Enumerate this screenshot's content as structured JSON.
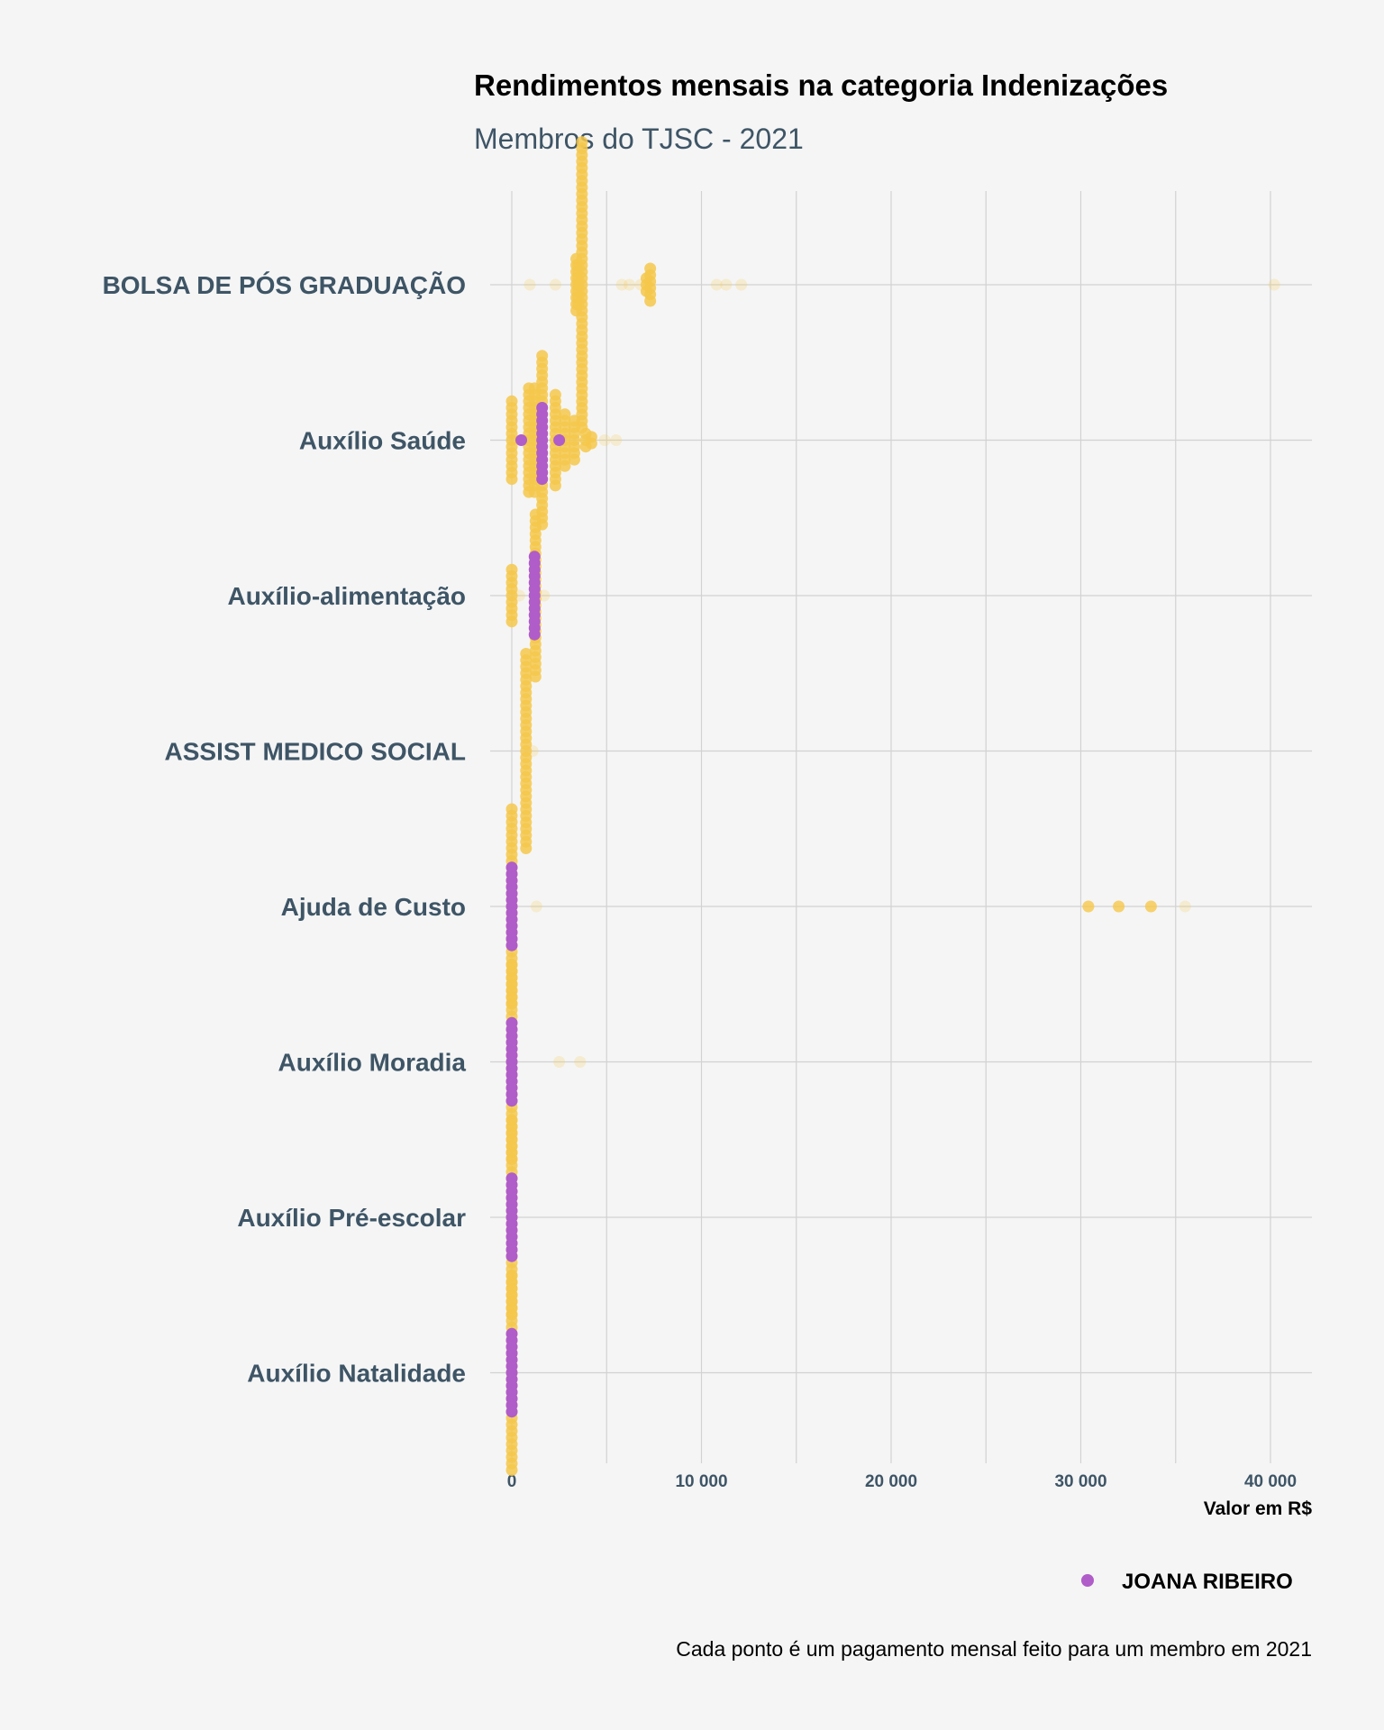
{
  "chart_data": {
    "type": "scatter",
    "title": "Rendimentos mensais na categoria Indenizações",
    "subtitle": "Membros do TJSC - 2021",
    "xlabel": "Valor em R$",
    "ylabel": "",
    "xlim": [
      -1000,
      42500
    ],
    "x_ticks": [
      0,
      10000,
      20000,
      30000,
      40000
    ],
    "x_tick_labels": [
      "0",
      "10 000",
      "20 000",
      "30 000",
      "40 000"
    ],
    "grid": true,
    "legend_position": "bottom-right",
    "caption": "Cada ponto é um pagamento mensal feito para um membro em 2021",
    "categories": [
      "BOLSA DE PÓS GRADUAÇÃO",
      "Auxílio Saúde",
      "Auxílio-alimentação",
      "ASSIST MEDICO SOCIAL",
      "Ajuda de Custo",
      "Auxílio Moradia",
      "Auxílio Pré-escolar",
      "Auxílio Natalidade"
    ],
    "series": [
      {
        "name": "",
        "color": "#f5c84c",
        "groups": [
          {
            "category": "BOLSA DE PÓS GRADUAÇÃO",
            "clusters": [
              {
                "x": 3700,
                "count": 45
              },
              {
                "x": 3400,
                "count": 9
              },
              {
                "x": 3500,
                "count": 7
              },
              {
                "x": 7300,
                "count": 6
              },
              {
                "x": 7100,
                "count": 3
              }
            ],
            "outliers": [
              950,
              2300,
              5800,
              6200,
              6800,
              10800,
              11300,
              12100,
              40200
            ]
          },
          {
            "category": "Auxílio Saúde",
            "clusters": [
              {
                "x": 1600,
                "count": 27
              },
              {
                "x": 1200,
                "count": 17
              },
              {
                "x": 900,
                "count": 17
              },
              {
                "x": 2300,
                "count": 15
              },
              {
                "x": 0,
                "count": 13
              },
              {
                "x": 2800,
                "count": 9
              },
              {
                "x": 3300,
                "count": 7
              },
              {
                "x": 3900,
                "count": 3
              },
              {
                "x": 4200,
                "count": 2
              }
            ],
            "outliers": [
              4900,
              5500
            ]
          },
          {
            "category": "Auxílio-alimentação",
            "clusters": [
              {
                "x": 1250,
                "count": 26
              },
              {
                "x": 0,
                "count": 9
              }
            ],
            "outliers": [
              1700,
              400
            ]
          },
          {
            "category": "ASSIST MEDICO SOCIAL",
            "clusters": [
              {
                "x": 750,
                "count": 31
              }
            ],
            "outliers": [
              1100
            ]
          },
          {
            "category": "Ajuda de Custo",
            "clusters": [
              {
                "x": 0,
                "count": 31
              }
            ],
            "outliers": [
              1300,
              30400,
              32000,
              33700,
              35500
            ]
          },
          {
            "category": "Auxílio Moradia",
            "clusters": [
              {
                "x": 0,
                "count": 31
              }
            ],
            "outliers": [
              2500,
              3600
            ]
          },
          {
            "category": "Auxílio Pré-escolar",
            "clusters": [
              {
                "x": 0,
                "count": 31
              }
            ],
            "outliers": []
          },
          {
            "category": "Auxílio Natalidade",
            "clusters": [
              {
                "x": 0,
                "count": 31
              }
            ],
            "outliers": []
          }
        ]
      },
      {
        "name": "JOANA RIBEIRO",
        "color": "#b05cc9",
        "groups": [
          {
            "category": "Auxílio Saúde",
            "points": [
              [
                1600,
                0
              ],
              [
                1600,
                1
              ],
              [
                1600,
                -1
              ],
              [
                1600,
                2
              ],
              [
                1600,
                -2
              ],
              [
                1600,
                3
              ],
              [
                1600,
                -3
              ],
              [
                1600,
                4
              ],
              [
                1600,
                -4
              ],
              [
                1600,
                5
              ],
              [
                1600,
                -5
              ],
              [
                1600,
                6
              ],
              [
                500,
                0
              ],
              [
                2500,
                0
              ]
            ]
          },
          {
            "category": "Auxílio-alimentação",
            "points": [
              [
                1200,
                -6
              ],
              [
                1200,
                -5
              ],
              [
                1200,
                -4
              ],
              [
                1200,
                -3
              ],
              [
                1200,
                -2
              ],
              [
                1200,
                -1
              ],
              [
                1200,
                0
              ],
              [
                1200,
                1
              ],
              [
                1200,
                2
              ],
              [
                1200,
                3
              ],
              [
                1200,
                4
              ],
              [
                1200,
                5
              ],
              [
                1200,
                6
              ]
            ]
          },
          {
            "category": "Ajuda de Custo",
            "points": [
              [
                0,
                -6
              ],
              [
                0,
                -5
              ],
              [
                0,
                -4
              ],
              [
                0,
                -3
              ],
              [
                0,
                -2
              ],
              [
                0,
                -1
              ],
              [
                0,
                0
              ],
              [
                0,
                1
              ],
              [
                0,
                2
              ],
              [
                0,
                3
              ],
              [
                0,
                4
              ],
              [
                0,
                5
              ],
              [
                0,
                6
              ]
            ]
          },
          {
            "category": "Auxílio Moradia",
            "points": [
              [
                0,
                -6
              ],
              [
                0,
                -5
              ],
              [
                0,
                -4
              ],
              [
                0,
                -3
              ],
              [
                0,
                -2
              ],
              [
                0,
                -1
              ],
              [
                0,
                0
              ],
              [
                0,
                1
              ],
              [
                0,
                2
              ],
              [
                0,
                3
              ],
              [
                0,
                4
              ],
              [
                0,
                5
              ],
              [
                0,
                6
              ]
            ]
          },
          {
            "category": "Auxílio Pré-escolar",
            "points": [
              [
                0,
                -6
              ],
              [
                0,
                -5
              ],
              [
                0,
                -4
              ],
              [
                0,
                -3
              ],
              [
                0,
                -2
              ],
              [
                0,
                -1
              ],
              [
                0,
                0
              ],
              [
                0,
                1
              ],
              [
                0,
                2
              ],
              [
                0,
                3
              ],
              [
                0,
                4
              ],
              [
                0,
                5
              ],
              [
                0,
                6
              ]
            ]
          },
          {
            "category": "Auxílio Natalidade",
            "points": [
              [
                0,
                -6
              ],
              [
                0,
                -5
              ],
              [
                0,
                -4
              ],
              [
                0,
                -3
              ],
              [
                0,
                -2
              ],
              [
                0,
                -1
              ],
              [
                0,
                0
              ],
              [
                0,
                1
              ],
              [
                0,
                2
              ],
              [
                0,
                3
              ],
              [
                0,
                4
              ],
              [
                0,
                5
              ],
              [
                0,
                6
              ]
            ]
          }
        ]
      }
    ]
  }
}
